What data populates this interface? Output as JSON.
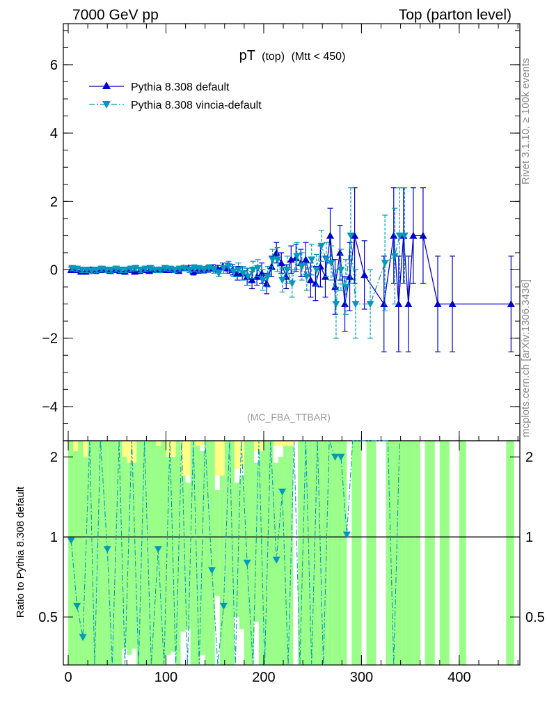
{
  "header": {
    "left": "7000 GeV pp",
    "right": "Top (parton level)"
  },
  "plot_title": {
    "main": "pT",
    "sub1": "(top)",
    "sub2": "(Mtt < 450)"
  },
  "analysis_tag": "(MC_FBA_TTBAR)",
  "side_text": {
    "rivet": "Rivet 3.1.10, ≥ 100k events",
    "mcplots": "mcplots.cern.ch [arXiv:1306.3436]"
  },
  "ratio_ylabel": "Ratio to Pythia 8.308 default",
  "legend": [
    {
      "name": "Pythia 8.308 default",
      "color": "#0000cc",
      "marker": "triangle-up",
      "dash": "solid"
    },
    {
      "name": "Pythia 8.308 vincia-default",
      "color": "#0099bb",
      "marker": "triangle-down",
      "dash": "dashdot"
    }
  ],
  "chart_data": {
    "type": "line",
    "main_panel": {
      "xlim": [
        -5,
        462
      ],
      "ylim": [
        -5,
        7.2
      ],
      "yticks": [
        -4,
        -2,
        0,
        2,
        4,
        6
      ],
      "ytick_labels": [
        "−4",
        "−2",
        "0",
        "2",
        "4",
        "6"
      ],
      "series": [
        {
          "name": "Pythia 8.308 default",
          "color": "#0000cc",
          "x": [
            3,
            8,
            13,
            18,
            23,
            28,
            33,
            38,
            43,
            48,
            53,
            58,
            63,
            68,
            73,
            78,
            83,
            88,
            93,
            98,
            103,
            108,
            113,
            118,
            123,
            128,
            133,
            138,
            143,
            148,
            153,
            158,
            163,
            168,
            173,
            178,
            183,
            188,
            193,
            198,
            203,
            208,
            213,
            218,
            223,
            228,
            233,
            238,
            243,
            248,
            253,
            258,
            263,
            268,
            273,
            278,
            283,
            288,
            293,
            298,
            303,
            308,
            313,
            318,
            323,
            328,
            333,
            338,
            343,
            348,
            353,
            358,
            363,
            368,
            373,
            378,
            383,
            388,
            393,
            398,
            403,
            408,
            413,
            418,
            423,
            428,
            433,
            438,
            443,
            448,
            453
          ],
          "y": [
            0.0,
            0.0,
            -0.05,
            -0.05,
            0.0,
            -0.03,
            0.0,
            0.0,
            -0.03,
            0.0,
            -0.03,
            -0.05,
            0.0,
            -0.05,
            -0.03,
            0.0,
            -0.03,
            0.0,
            0.0,
            0.0,
            0.0,
            0.0,
            -0.03,
            0.05,
            0.05,
            -0.05,
            0.0,
            0.0,
            0.03,
            0.05,
            0.03,
            0.1,
            0.05,
            0.0,
            -0.1,
            -0.1,
            -0.2,
            -0.3,
            -0.2,
            -0.1,
            -0.4,
            0.1,
            0.5,
            0.2,
            -0.2,
            0.3,
            0.35,
            0.2,
            0.3,
            -0.3,
            -0.4,
            0.1,
            -0.2,
            1.0,
            -0.5,
            0.5,
            -1.0,
            -0.2,
            1.0,
            null,
            -0.15,
            null,
            null,
            null,
            -1.0,
            null,
            1.0,
            -1.0,
            1.0,
            -1.0,
            1.0,
            null,
            1.0,
            null,
            null,
            -1.0,
            null,
            null,
            -1.0,
            null,
            null,
            null,
            null,
            null,
            null,
            null,
            null,
            null,
            null,
            null,
            -1.0
          ],
          "yerr": [
            0.08,
            0.08,
            0.08,
            0.08,
            0.08,
            0.08,
            0.08,
            0.08,
            0.08,
            0.08,
            0.08,
            0.08,
            0.08,
            0.08,
            0.08,
            0.08,
            0.08,
            0.08,
            0.08,
            0.08,
            0.08,
            0.08,
            0.08,
            0.08,
            0.08,
            0.1,
            0.1,
            0.1,
            0.1,
            0.1,
            0.1,
            0.1,
            0.15,
            0.15,
            0.2,
            0.2,
            0.25,
            0.25,
            0.25,
            0.3,
            0.3,
            0.3,
            0.3,
            0.3,
            0.35,
            0.4,
            0.4,
            0.4,
            0.5,
            0.5,
            0.5,
            0.6,
            0.6,
            0.8,
            0.8,
            0.8,
            0.8,
            1.0,
            1.4,
            null,
            1.0,
            null,
            null,
            null,
            1.4,
            null,
            1.4,
            1.4,
            1.4,
            1.4,
            1.4,
            null,
            1.4,
            null,
            null,
            1.4,
            null,
            null,
            1.4,
            null,
            null,
            null,
            null,
            null,
            null,
            null,
            null,
            null,
            null,
            null,
            1.4
          ]
        },
        {
          "name": "Pythia 8.308 vincia-default",
          "color": "#0099bb",
          "x": [
            4,
            9,
            14,
            19,
            24,
            29,
            34,
            39,
            44,
            49,
            54,
            59,
            64,
            69,
            74,
            79,
            84,
            89,
            94,
            99,
            104,
            109,
            114,
            119,
            124,
            129,
            134,
            139,
            144,
            149,
            154,
            159,
            164,
            169,
            174,
            179,
            184,
            189,
            194,
            199,
            204,
            209,
            214,
            219,
            224,
            229,
            234,
            239,
            244,
            249,
            254,
            259,
            264,
            269,
            274,
            279,
            284,
            289,
            294,
            299,
            304,
            309,
            314,
            319,
            324,
            329,
            334,
            339,
            344
          ],
          "y": [
            0.05,
            0.03,
            0.0,
            0.0,
            -0.03,
            0.0,
            0.03,
            0.0,
            0.0,
            0.03,
            0.0,
            0.0,
            0.03,
            0.05,
            0.0,
            0.03,
            0.05,
            0.0,
            0.0,
            0.05,
            0.03,
            0.0,
            0.03,
            0.05,
            0.0,
            0.05,
            0.03,
            0.0,
            0.05,
            0.0,
            -0.1,
            0.05,
            0.1,
            -0.05,
            0.0,
            -0.1,
            -0.2,
            0.0,
            0.05,
            -0.3,
            -0.2,
            0.3,
            0.3,
            -0.3,
            0.0,
            -0.4,
            0.4,
            0.1,
            -0.2,
            0.3,
            0.0,
            0.7,
            0.3,
            0.2,
            -1.0,
            0.0,
            -0.5,
            1.0,
            -1.0,
            null,
            null,
            -1.0,
            null,
            null,
            0.2,
            null,
            0.4,
            1.0,
            1.0
          ],
          "yerr": [
            0.08,
            0.08,
            0.08,
            0.08,
            0.08,
            0.08,
            0.08,
            0.08,
            0.08,
            0.08,
            0.08,
            0.08,
            0.08,
            0.08,
            0.08,
            0.08,
            0.08,
            0.08,
            0.08,
            0.08,
            0.08,
            0.08,
            0.08,
            0.08,
            0.08,
            0.1,
            0.1,
            0.1,
            0.1,
            0.1,
            0.1,
            0.15,
            0.15,
            0.15,
            0.2,
            0.2,
            0.25,
            0.25,
            0.25,
            0.3,
            0.3,
            0.3,
            0.35,
            0.35,
            0.4,
            0.4,
            0.4,
            0.4,
            0.4,
            0.45,
            0.45,
            0.45,
            0.5,
            0.5,
            1.0,
            0.6,
            0.8,
            1.4,
            1.0,
            null,
            null,
            1.0,
            null,
            null,
            1.4,
            null,
            1.4,
            1.4,
            1.4
          ]
        }
      ]
    },
    "ratio_panel": {
      "xlim": [
        -5,
        462
      ],
      "ylim": [
        0.33,
        2.3
      ],
      "yticks": [
        0.5,
        1,
        2
      ],
      "ytick_labels": [
        "0.5",
        "1",
        "2"
      ],
      "xticks": [
        0,
        100,
        200,
        300,
        400
      ],
      "xtick_labels": [
        "0",
        "100",
        "200",
        "300",
        "400"
      ],
      "reference": 1.0,
      "yellow_bands": [
        [
          0,
          5,
          2.3,
          0.33
        ],
        [
          5,
          10,
          2.1,
          0.33
        ],
        [
          15,
          20,
          2.0,
          0.33
        ],
        [
          55,
          60,
          2.0,
          0.33
        ],
        [
          60,
          70,
          1.9,
          0.33
        ],
        [
          90,
          95,
          2.2,
          0.33
        ],
        [
          100,
          110,
          2.0,
          0.33
        ],
        [
          115,
          125,
          1.7,
          0.4
        ],
        [
          130,
          140,
          2.2,
          0.33
        ],
        [
          150,
          160,
          1.7,
          0.5
        ],
        [
          170,
          180,
          1.8,
          0.33
        ],
        [
          190,
          200,
          2.1,
          0.45
        ],
        [
          210,
          230,
          2.2,
          0.33
        ]
      ],
      "green_bands": [
        [
          0,
          5,
          2.3,
          0.33
        ],
        [
          5,
          10,
          2.3,
          0.33
        ],
        [
          10,
          15,
          2.3,
          0.33
        ],
        [
          15,
          20,
          2.3,
          0.33
        ],
        [
          20,
          25,
          2.3,
          0.33
        ],
        [
          25,
          30,
          2.3,
          0.33
        ],
        [
          30,
          35,
          2.3,
          0.33
        ],
        [
          35,
          40,
          2.3,
          0.33
        ],
        [
          40,
          45,
          2.3,
          0.33
        ],
        [
          45,
          50,
          2.3,
          0.33
        ],
        [
          50,
          55,
          2.3,
          0.33
        ],
        [
          55,
          60,
          2.1,
          0.38
        ],
        [
          60,
          65,
          1.9,
          0.36
        ],
        [
          65,
          70,
          2.3,
          0.38
        ],
        [
          70,
          75,
          2.3,
          0.33
        ],
        [
          75,
          80,
          2.3,
          0.33
        ],
        [
          80,
          85,
          2.3,
          0.33
        ],
        [
          85,
          90,
          2.3,
          0.33
        ],
        [
          90,
          95,
          2.3,
          0.33
        ],
        [
          95,
          100,
          2.3,
          0.33
        ],
        [
          100,
          105,
          2.1,
          0.36
        ],
        [
          105,
          110,
          2.0,
          0.37
        ],
        [
          110,
          115,
          2.3,
          0.33
        ],
        [
          115,
          120,
          1.9,
          0.44
        ],
        [
          120,
          125,
          1.6,
          0.45
        ],
        [
          125,
          130,
          2.3,
          0.33
        ],
        [
          130,
          135,
          2.3,
          0.33
        ],
        [
          135,
          140,
          2.1,
          0.36
        ],
        [
          140,
          145,
          2.3,
          0.33
        ],
        [
          145,
          150,
          2.3,
          0.33
        ],
        [
          150,
          155,
          1.5,
          0.6
        ],
        [
          155,
          160,
          2.3,
          0.33
        ],
        [
          160,
          165,
          2.3,
          0.33
        ],
        [
          165,
          170,
          2.3,
          0.33
        ],
        [
          170,
          175,
          1.6,
          0.5
        ],
        [
          175,
          180,
          1.7,
          0.45
        ],
        [
          180,
          185,
          2.3,
          0.33
        ],
        [
          185,
          190,
          2.3,
          0.33
        ],
        [
          190,
          195,
          1.9,
          0.48
        ],
        [
          195,
          200,
          2.1,
          0.33
        ],
        [
          200,
          205,
          2.3,
          0.33
        ],
        [
          205,
          210,
          2.3,
          0.33
        ],
        [
          210,
          215,
          1.9,
          0.33
        ],
        [
          215,
          220,
          2.0,
          0.33
        ],
        [
          220,
          225,
          2.3,
          0.33
        ],
        [
          225,
          230,
          2.3,
          0.33
        ],
        [
          235,
          240,
          2.3,
          0.33
        ],
        [
          240,
          245,
          2.3,
          0.33
        ],
        [
          245,
          250,
          2.3,
          0.33
        ],
        [
          250,
          255,
          2.3,
          0.33
        ],
        [
          255,
          260,
          2.3,
          0.33
        ],
        [
          260,
          265,
          2.3,
          0.33
        ],
        [
          265,
          270,
          2.3,
          0.33
        ],
        [
          270,
          275,
          2.3,
          0.33
        ],
        [
          275,
          280,
          2.3,
          0.33
        ],
        [
          280,
          285,
          2.3,
          0.33
        ],
        [
          290,
          300,
          2.3,
          0.33
        ],
        [
          305,
          315,
          2.3,
          0.33
        ],
        [
          325,
          335,
          2.3,
          0.33
        ],
        [
          335,
          345,
          2.3,
          0.33
        ],
        [
          345,
          355,
          2.3,
          0.33
        ],
        [
          355,
          360,
          2.3,
          0.33
        ],
        [
          365,
          375,
          2.3,
          0.33
        ],
        [
          380,
          390,
          2.3,
          0.33
        ],
        [
          400,
          407,
          2.3,
          0.33
        ],
        [
          448,
          456,
          2.3,
          0.33
        ]
      ],
      "ratio_series": {
        "name": "Pythia 8.308 vincia-default",
        "x": [
          3,
          9,
          15,
          22,
          27,
          33,
          40,
          45,
          52,
          58,
          65,
          72,
          78,
          85,
          92,
          98,
          104,
          110,
          116,
          122,
          128,
          134,
          140,
          147,
          153,
          159,
          165,
          171,
          177,
          183,
          189,
          195,
          201,
          207,
          213,
          219,
          225,
          231,
          237,
          243,
          249,
          255,
          261,
          267,
          273,
          279,
          285,
          291,
          297,
          303,
          309,
          315,
          321,
          327,
          333,
          339
        ],
        "y": [
          0.97,
          0.55,
          0.42,
          2.3,
          0.33,
          2.3,
          0.9,
          0.33,
          2.3,
          0.33,
          2.3,
          0.33,
          2.3,
          0.33,
          0.9,
          0.33,
          2.3,
          0.33,
          2.3,
          0.33,
          2.3,
          0.33,
          2.3,
          0.75,
          0.33,
          0.55,
          2.3,
          0.33,
          2.3,
          0.8,
          0.33,
          2.3,
          0.33,
          2.3,
          0.82,
          1.48,
          0.33,
          2.3,
          0.33,
          2.3,
          0.33,
          2.3,
          0.33,
          2.3,
          2.0,
          2.0,
          1.02,
          2.3,
          2.3,
          2.3,
          2.3,
          2.3,
          2.3,
          2.3,
          0.33,
          2.3
        ],
        "markers_x": [
          3,
          9,
          15,
          40,
          92,
          147,
          159,
          183,
          213,
          219,
          273,
          279,
          285
        ],
        "markers_y": [
          0.97,
          0.55,
          0.42,
          0.9,
          0.9,
          0.75,
          0.55,
          0.8,
          0.82,
          1.48,
          2.0,
          2.0,
          1.02
        ]
      }
    }
  }
}
